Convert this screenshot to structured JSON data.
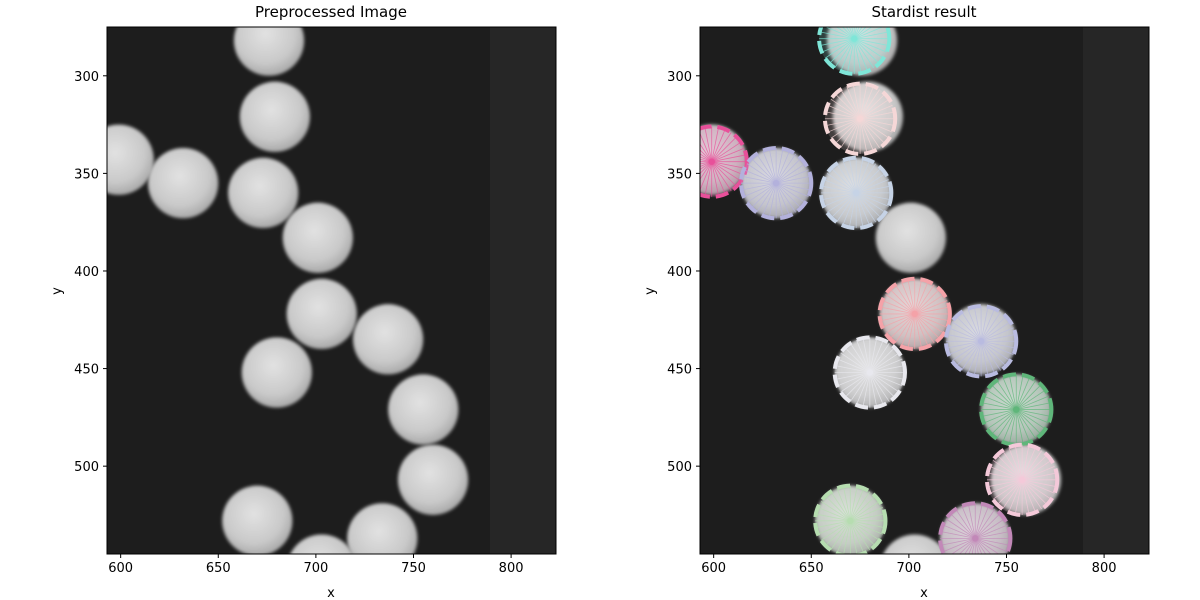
{
  "chart_data": [
    {
      "type": "image",
      "title": "Preprocessed Image",
      "xlabel": "x",
      "ylabel": "y",
      "xlim": [
        593,
        823
      ],
      "ylim": [
        545,
        275
      ],
      "xticks": [
        600,
        650,
        700,
        750,
        800
      ],
      "yticks": [
        300,
        350,
        400,
        450,
        500
      ],
      "background": "#1d1d1d",
      "objects": [
        {
          "x": 676,
          "y": 282,
          "r": 18
        },
        {
          "x": 679,
          "y": 321,
          "r": 18
        },
        {
          "x": 599,
          "y": 343,
          "r": 18
        },
        {
          "x": 632,
          "y": 355,
          "r": 18
        },
        {
          "x": 673,
          "y": 360,
          "r": 18
        },
        {
          "x": 701,
          "y": 383,
          "r": 18
        },
        {
          "x": 703,
          "y": 422,
          "r": 18
        },
        {
          "x": 737,
          "y": 435,
          "r": 18
        },
        {
          "x": 680,
          "y": 452,
          "r": 18
        },
        {
          "x": 755,
          "y": 471,
          "r": 18
        },
        {
          "x": 760,
          "y": 507,
          "r": 18
        },
        {
          "x": 670,
          "y": 528,
          "r": 18
        },
        {
          "x": 734,
          "y": 537,
          "r": 18
        },
        {
          "x": 703,
          "y": 553,
          "r": 18
        }
      ]
    },
    {
      "type": "image",
      "title": "Stardist result",
      "xlabel": "x",
      "ylabel": "y",
      "xlim": [
        593,
        823
      ],
      "ylim": [
        545,
        275
      ],
      "xticks": [
        600,
        650,
        700,
        750,
        800
      ],
      "yticks": [
        300,
        350,
        400,
        450,
        500
      ],
      "background": "#1d1d1d",
      "objects": [
        {
          "x": 672,
          "y": 281,
          "r": 18,
          "color": "#7fe6d8"
        },
        {
          "x": 675,
          "y": 322,
          "r": 18,
          "color": "#f5d7d7"
        },
        {
          "x": 599,
          "y": 344,
          "r": 18,
          "color": "#e8509a"
        },
        {
          "x": 632,
          "y": 355,
          "r": 18,
          "color": "#b3b1dc"
        },
        {
          "x": 673,
          "y": 360,
          "r": 18,
          "color": "#c6d3e6"
        },
        {
          "x": 703,
          "y": 422,
          "r": 18,
          "color": "#f4a2a8"
        },
        {
          "x": 737,
          "y": 436,
          "r": 18,
          "color": "#b9bbe0"
        },
        {
          "x": 680,
          "y": 452,
          "r": 18,
          "color": "#e8e8ee"
        },
        {
          "x": 755,
          "y": 471,
          "r": 18,
          "color": "#5fb67a"
        },
        {
          "x": 758,
          "y": 507,
          "r": 18,
          "color": "#f4c9d9"
        },
        {
          "x": 670,
          "y": 528,
          "r": 18,
          "color": "#b6ddb0"
        },
        {
          "x": 734,
          "y": 537,
          "r": 18,
          "color": "#c288b8"
        }
      ]
    }
  ]
}
